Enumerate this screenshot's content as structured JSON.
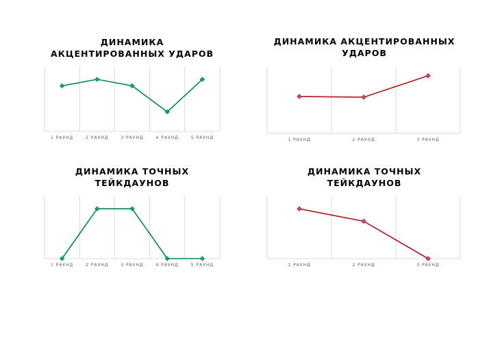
{
  "chart_data": [
    {
      "type": "line",
      "title": "ДИНАМИКА\nАКЦЕНТИРОВАННЫХ УДАРОВ",
      "categories": [
        "1 РАУНД",
        "2 РАУНД",
        "3 РАУНД",
        "4 РАУНД",
        "5 РАУНД"
      ],
      "series": [
        {
          "values": [
            7,
            8,
            7,
            3,
            8
          ],
          "color": "#00864a"
        }
      ],
      "ylim": [
        0,
        10
      ],
      "grid": "vertical"
    },
    {
      "type": "line",
      "title": "ДИНАМИКА АКЦЕНТИРОВАННЫХ\nУДАРОВ",
      "categories": [
        "1 РАУНД",
        "2 РАУНД",
        "3 РАУНД"
      ],
      "series": [
        {
          "values": [
            5.5,
            5.4,
            8.6
          ],
          "color": "#b0131a"
        }
      ],
      "ylim": [
        0,
        10
      ],
      "grid": "vertical"
    },
    {
      "type": "line",
      "title": "ДИНАМИКА ТОЧНЫХ\nТЕЙКДАУНОВ",
      "categories": [
        "1 РАУНД",
        "2 РАУНД",
        "3 РАУНД",
        "4 РАУНД",
        "5 РАУНД"
      ],
      "series": [
        {
          "values": [
            0,
            8,
            8,
            0,
            0
          ],
          "color": "#00864a"
        }
      ],
      "ylim": [
        0,
        10
      ],
      "grid": "vertical"
    },
    {
      "type": "line",
      "title": "ДИНАМИКА ТОЧНЫХ\nТЕЙКДАУНОВ",
      "categories": [
        "1 РАУНД",
        "2 РАУНД",
        "3 РАУНД"
      ],
      "series": [
        {
          "values": [
            8,
            6,
            0
          ],
          "color": "#b0131a"
        }
      ],
      "ylim": [
        0,
        10
      ],
      "grid": "vertical"
    }
  ]
}
